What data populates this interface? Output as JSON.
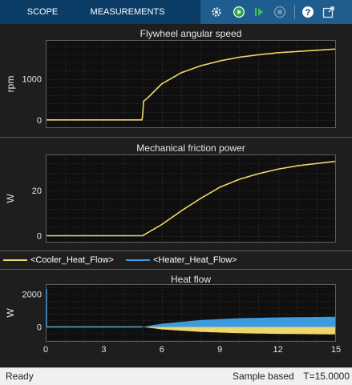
{
  "toolbar": {
    "tabs": [
      {
        "label": "SCOPE"
      },
      {
        "label": "MEASUREMENTS"
      }
    ],
    "icons": [
      "settings-gear-icon",
      "run-icon",
      "step-forward-icon",
      "stop-icon",
      "help-icon",
      "undock-icon"
    ],
    "colors": {
      "bar": "#0b3d66",
      "strip": "#1f5d8f"
    }
  },
  "panels": [
    {
      "title": "Flywheel angular speed",
      "ylabel": "rpm",
      "yticks": [
        "0",
        "1000"
      ]
    },
    {
      "title": "Mechanical friction power",
      "ylabel": "W",
      "yticks": [
        "0",
        "20"
      ]
    },
    {
      "title": "Heat flow",
      "ylabel": "W",
      "yticks": [
        "0",
        "2000"
      ]
    }
  ],
  "legend": [
    {
      "label": "<Cooler_Heat_Flow>",
      "color": "#f0d56a"
    },
    {
      "label": "<Heater_Heat_Flow>",
      "color": "#3d9be0"
    }
  ],
  "xticks": [
    "0",
    "3",
    "6",
    "9",
    "12",
    "15"
  ],
  "status": {
    "left": "Ready",
    "mode": "Sample based",
    "time": "T=15.0000"
  },
  "chart_data": [
    {
      "type": "line",
      "title": "Flywheel angular speed",
      "ylabel": "rpm",
      "xlim": [
        0,
        15
      ],
      "ylim": [
        -200,
        1950
      ],
      "yticks": [
        0,
        1000
      ],
      "grid": true,
      "series": [
        {
          "color": "#f0d56a",
          "x": [
            0,
            5,
            5.05,
            5.3,
            6,
            7,
            8,
            9,
            10,
            11,
            12,
            13,
            14,
            15
          ],
          "y": [
            0,
            0,
            450,
            550,
            880,
            1150,
            1320,
            1440,
            1530,
            1590,
            1640,
            1670,
            1700,
            1730
          ]
        }
      ]
    },
    {
      "type": "line",
      "title": "Mechanical friction power",
      "ylabel": "W",
      "xlim": [
        0,
        15
      ],
      "ylim": [
        -3,
        36
      ],
      "yticks": [
        0,
        20
      ],
      "grid": true,
      "series": [
        {
          "color": "#f0d56a",
          "x": [
            0,
            5,
            5.3,
            6,
            7,
            8,
            9,
            10,
            11,
            12,
            13,
            14,
            15
          ],
          "y": [
            0,
            0,
            1.5,
            5,
            11,
            16.5,
            21.5,
            25,
            27.5,
            29.5,
            31,
            32,
            33
          ]
        }
      ]
    },
    {
      "type": "line",
      "title": "Heat flow",
      "ylabel": "W",
      "xlim": [
        0,
        15
      ],
      "ylim": [
        -900,
        2600
      ],
      "yticks": [
        0,
        2000
      ],
      "grid": true,
      "series": [
        {
          "name": "<Cooler_Heat_Flow>",
          "color": "#f0d56a",
          "x": [
            0,
            5,
            6,
            8,
            10,
            12,
            15
          ],
          "y": [
            0,
            0,
            -150,
            -300,
            -380,
            -420,
            -450
          ]
        },
        {
          "name": "<Heater_Heat_Flow>",
          "color": "#3d9be0",
          "x": [
            0,
            5,
            6,
            8,
            10,
            12,
            15
          ],
          "y": [
            0,
            0,
            200,
            420,
            530,
            580,
            620
          ]
        }
      ]
    }
  ]
}
